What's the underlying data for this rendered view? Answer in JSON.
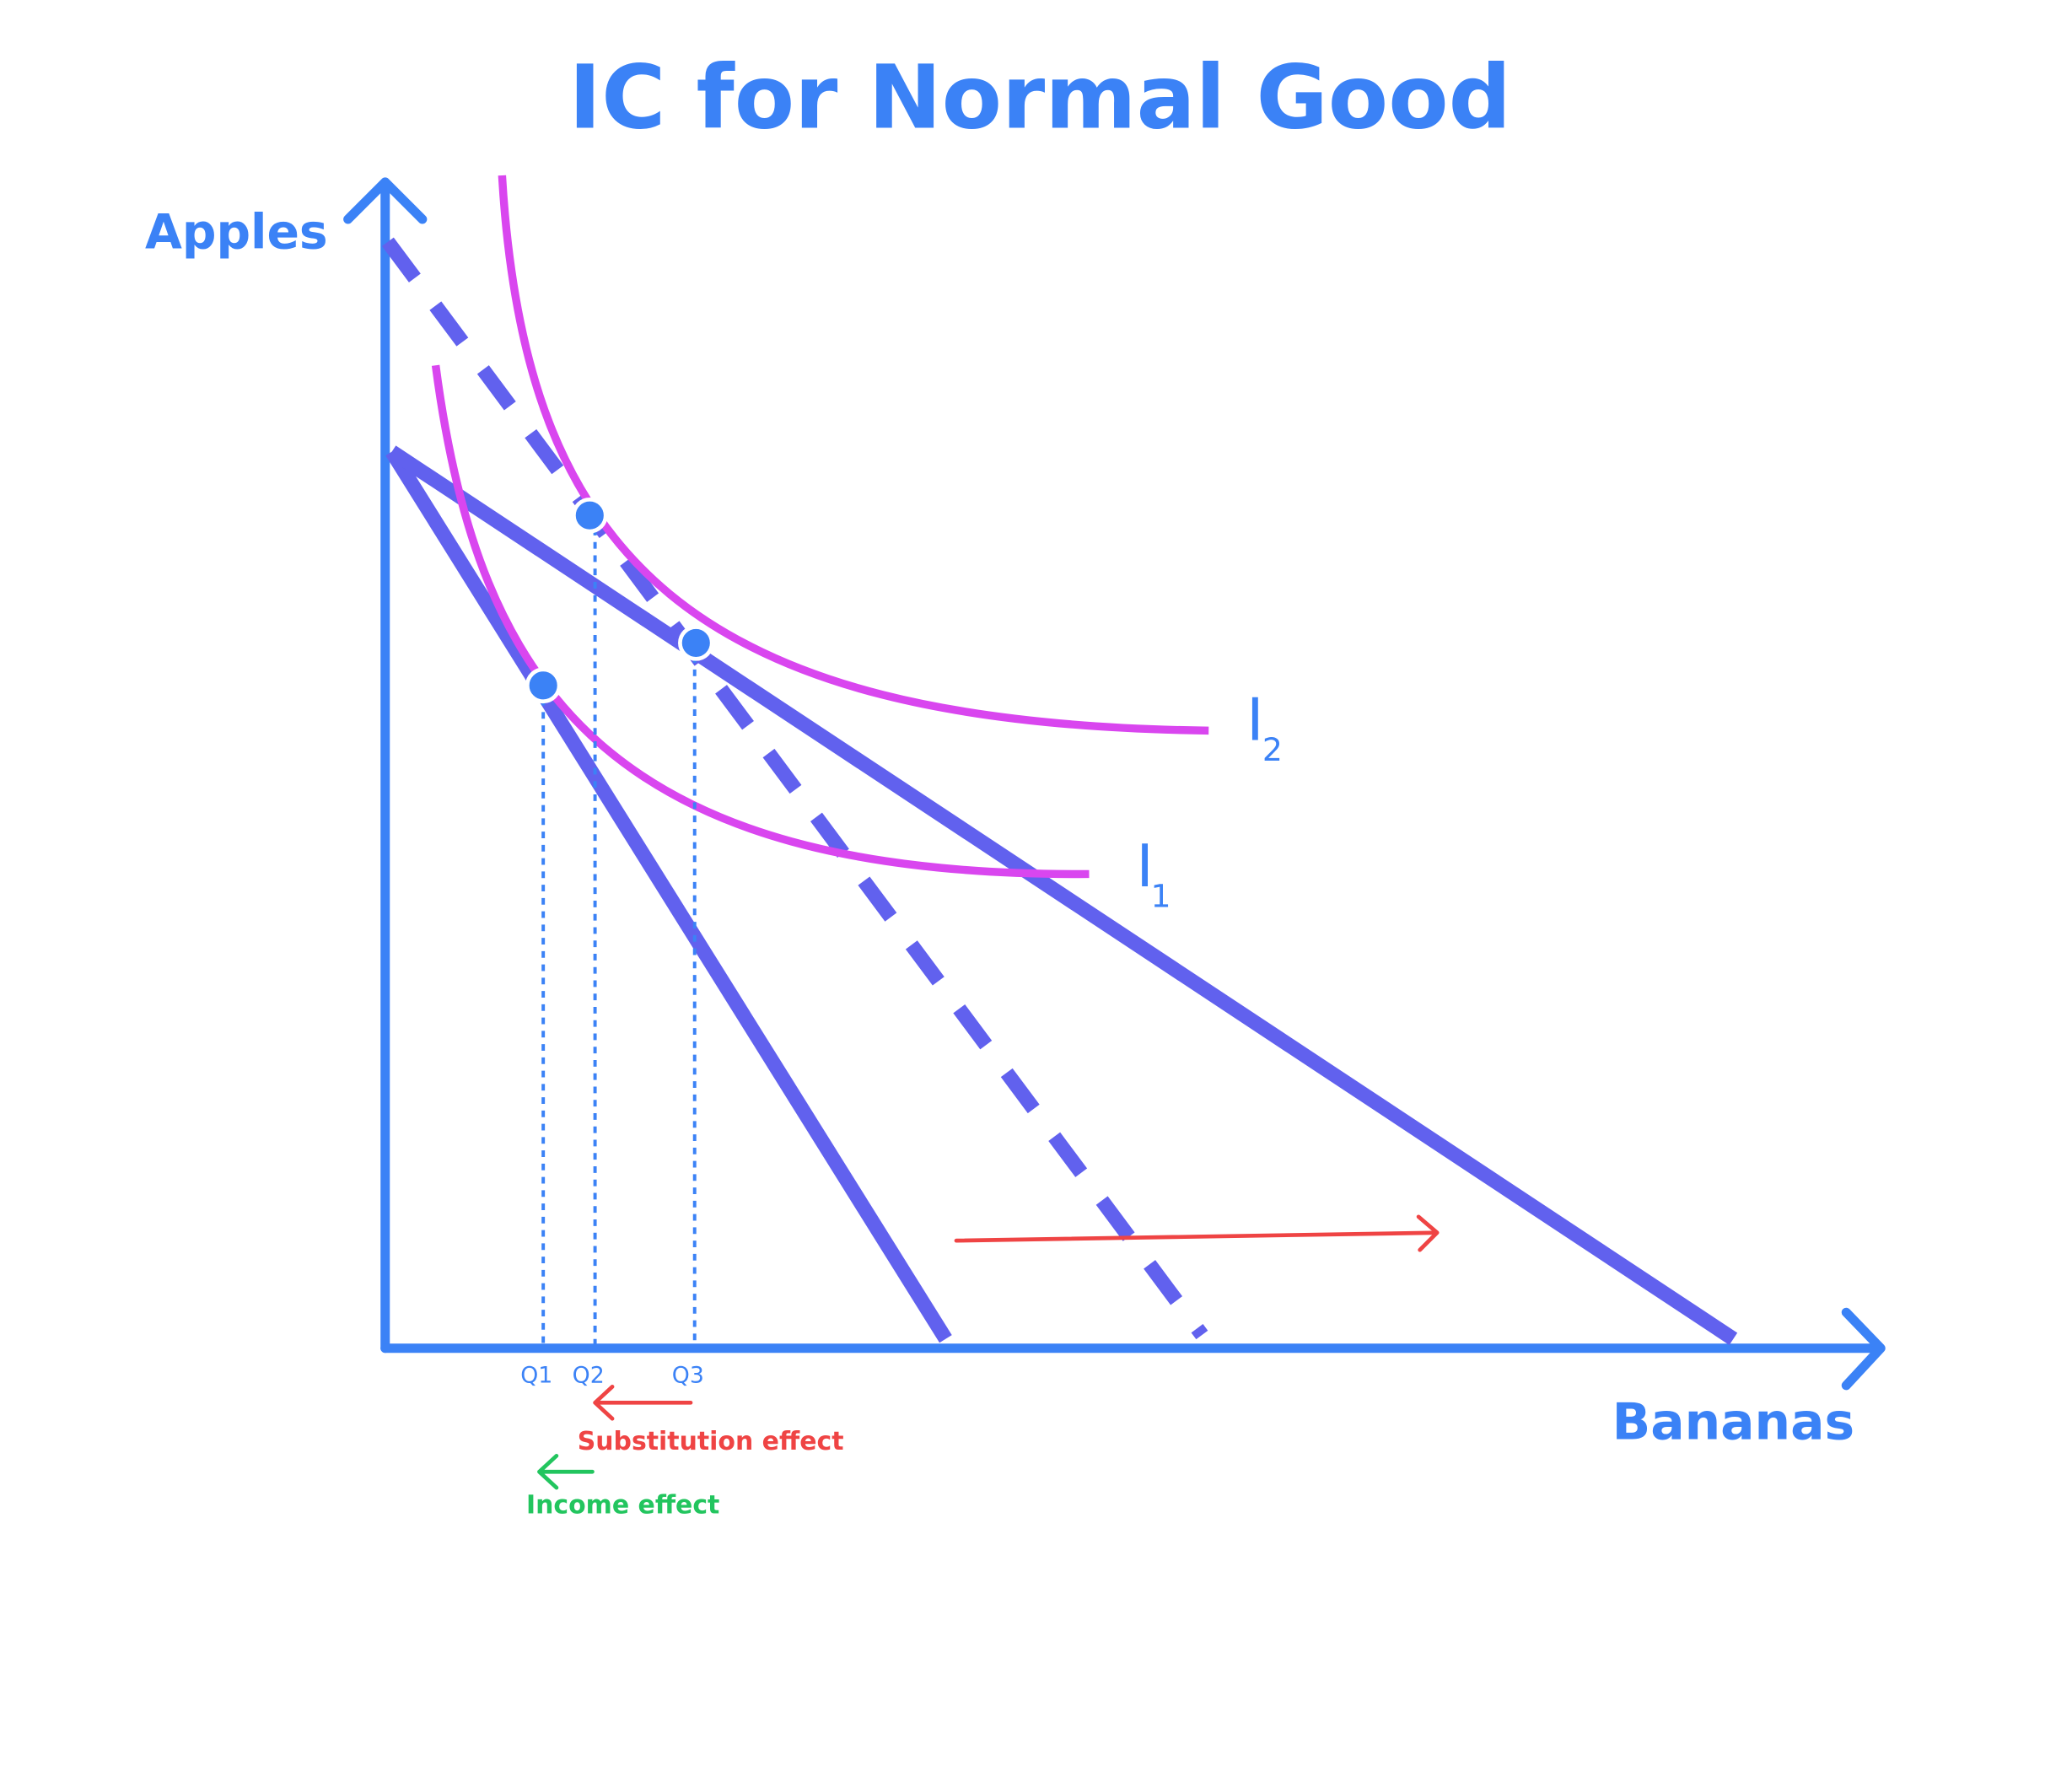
{
  "title": "IC for Normal Good",
  "axes": {
    "y": "Apples",
    "x": "Bananas"
  },
  "curves": [
    {
      "label": "I",
      "subscript": "2"
    },
    {
      "label": "I",
      "subscript": "1"
    }
  ],
  "quantities": [
    "Q1",
    "Q2",
    "Q3"
  ],
  "effects": [
    {
      "label": "Substitution effect"
    },
    {
      "label": "Income effect"
    }
  ]
}
